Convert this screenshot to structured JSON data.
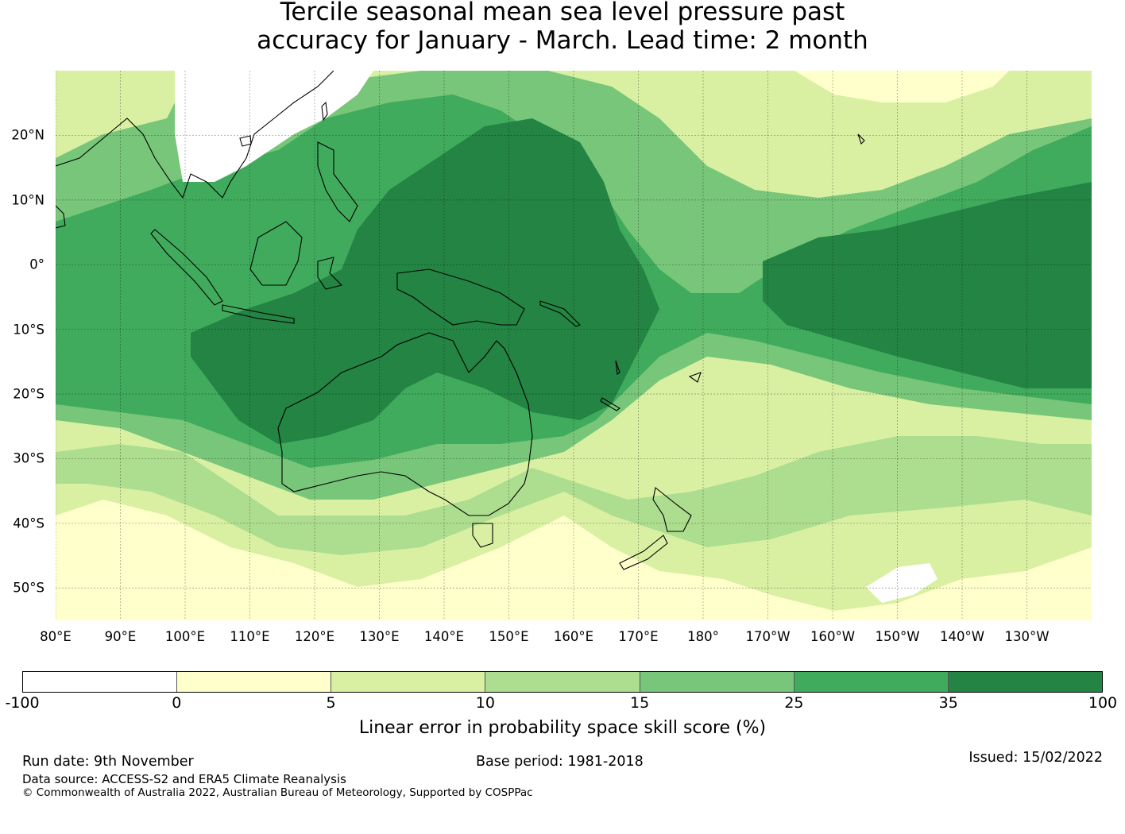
{
  "header": {
    "title_line1": "Tercile seasonal mean sea level pressure past",
    "title_line2": "accuracy for January - March. Lead time: 2 month"
  },
  "map": {
    "lon_range": [
      80,
      240
    ],
    "lat_range": [
      -55,
      30
    ],
    "lat_labels": [
      {
        "lat": 20,
        "text": "20°N"
      },
      {
        "lat": 10,
        "text": "10°N"
      },
      {
        "lat": 0,
        "text": "0°"
      },
      {
        "lat": -10,
        "text": "10°S"
      },
      {
        "lat": -20,
        "text": "20°S"
      },
      {
        "lat": -30,
        "text": "30°S"
      },
      {
        "lat": -40,
        "text": "40°S"
      },
      {
        "lat": -50,
        "text": "50°S"
      }
    ],
    "lon_labels": [
      {
        "lon": 80,
        "text": "80°E"
      },
      {
        "lon": 90,
        "text": "90°E"
      },
      {
        "lon": 100,
        "text": "100°E"
      },
      {
        "lon": 110,
        "text": "110°E"
      },
      {
        "lon": 120,
        "text": "120°E"
      },
      {
        "lon": 130,
        "text": "130°E"
      },
      {
        "lon": 140,
        "text": "140°E"
      },
      {
        "lon": 150,
        "text": "150°E"
      },
      {
        "lon": 160,
        "text": "160°E"
      },
      {
        "lon": 170,
        "text": "170°E"
      },
      {
        "lon": 180,
        "text": "180°"
      },
      {
        "lon": 190,
        "text": "170°W"
      },
      {
        "lon": 200,
        "text": "160°W"
      },
      {
        "lon": 210,
        "text": "150°W"
      },
      {
        "lon": 220,
        "text": "140°W"
      },
      {
        "lon": 230,
        "text": "130°W"
      }
    ]
  },
  "colorbar": {
    "label": "Linear error in probability space skill score (%)",
    "ticks": [
      "-100",
      "0",
      "5",
      "10",
      "15",
      "25",
      "35",
      "100"
    ],
    "colors": [
      "#ffffff",
      "#ffffcc",
      "#d9f0a3",
      "#addd8e",
      "#78c679",
      "#41ab5d",
      "#238443"
    ]
  },
  "footer": {
    "run_date": "Run date: 9th November",
    "base_period": "Base period: 1981-2018",
    "issued": "Issued: 15/02/2022",
    "data_source": "Data source: ACCESS-S2 and ERA5 Climate Reanalysis",
    "copyright": "© Commonwealth of Australia 2022, Australian Bureau of Meteorology, Supported by COSPPac"
  }
}
